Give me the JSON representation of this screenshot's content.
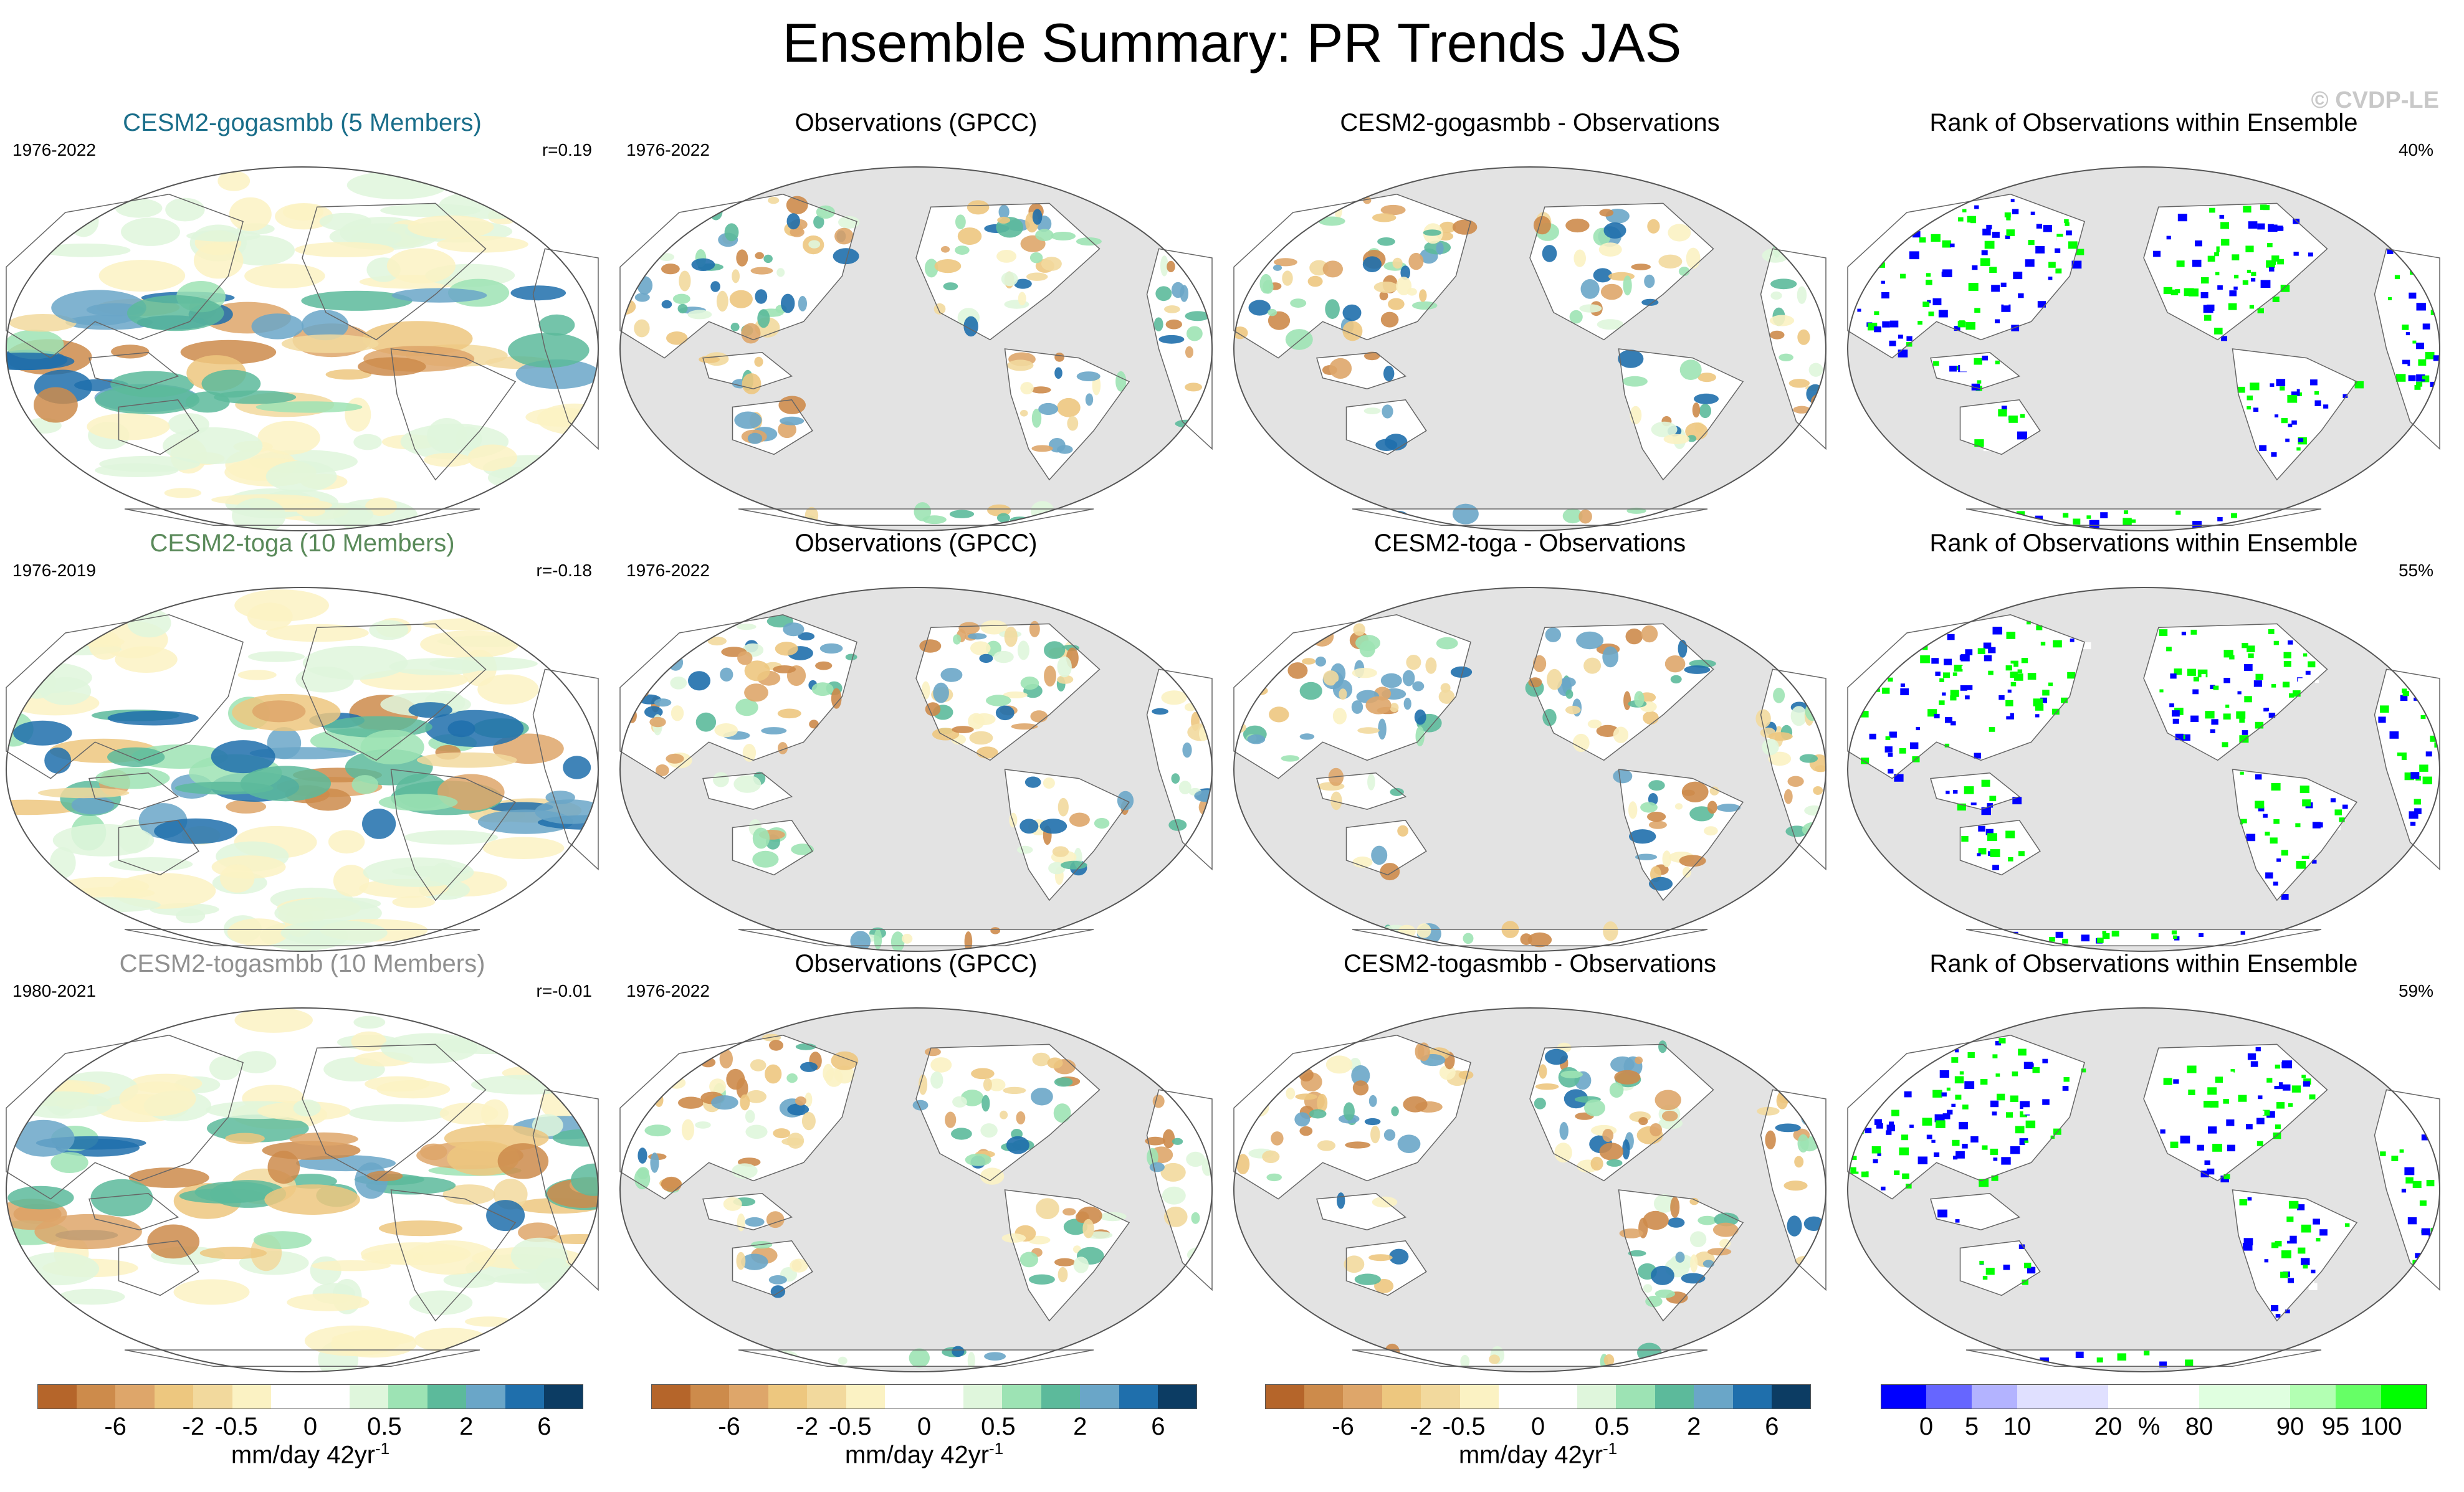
{
  "title": "Ensemble Summary: PR Trends JAS",
  "watermark": "© CVDP-LE",
  "colors": {
    "title_gogasmbb": "#1a6e8a",
    "title_toga": "#5a8a5a",
    "title_togasmbb": "#909090",
    "ocean_mask": "#e3e3e3",
    "coast": "#666666",
    "rank_low": "#0000ff",
    "rank_high": "#00ff00"
  },
  "rows": [
    {
      "panels": [
        {
          "title": "CESM2-gogasmbb (5 Members)",
          "date": "1976-2022",
          "stat": "r=0.19",
          "kind": "model",
          "title_color": "#1a6e8a"
        },
        {
          "title": "Observations (GPCC)",
          "date": "1976-2022",
          "stat": "",
          "kind": "obs",
          "title_color": "#000000"
        },
        {
          "title": "CESM2-gogasmbb - Observations",
          "date": "",
          "stat": "",
          "kind": "diff",
          "title_color": "#000000"
        },
        {
          "title": "Rank of Observations within Ensemble",
          "date": "",
          "stat": "40%",
          "kind": "rank",
          "title_color": "#000000"
        }
      ]
    },
    {
      "panels": [
        {
          "title": "CESM2-toga (10 Members)",
          "date": "1976-2019",
          "stat": "r=-0.18",
          "kind": "model",
          "title_color": "#5a8a5a"
        },
        {
          "title": "Observations (GPCC)",
          "date": "1976-2022",
          "stat": "",
          "kind": "obs",
          "title_color": "#000000"
        },
        {
          "title": "CESM2-toga - Observations",
          "date": "",
          "stat": "",
          "kind": "diff",
          "title_color": "#000000"
        },
        {
          "title": "Rank of Observations within Ensemble",
          "date": "",
          "stat": "55%",
          "kind": "rank",
          "title_color": "#000000"
        }
      ]
    },
    {
      "panels": [
        {
          "title": "CESM2-togasmbb (10 Members)",
          "date": "1980-2021",
          "stat": "r=-0.01",
          "kind": "model",
          "title_color": "#909090"
        },
        {
          "title": "Observations (GPCC)",
          "date": "1976-2022",
          "stat": "",
          "kind": "obs",
          "title_color": "#000000"
        },
        {
          "title": "CESM2-togasmbb - Observations",
          "date": "",
          "stat": "",
          "kind": "diff",
          "title_color": "#000000"
        },
        {
          "title": "Rank of Observations within Ensemble",
          "date": "",
          "stat": "59%",
          "kind": "rank",
          "title_color": "#000000"
        }
      ]
    }
  ],
  "colorbar_trend": {
    "colors": [
      "#b5652a",
      "#cd8b4b",
      "#dea66a",
      "#edc77f",
      "#f2d99d",
      "#fbf2c3",
      "#ffffff",
      "#ffffff",
      "#dff6dc",
      "#9de3b4",
      "#5cba9b",
      "#6aa6c8",
      "#1f6fac",
      "#0c3c63"
    ],
    "ticks": [
      "-6",
      "-2",
      "-0.5",
      "0",
      "0.5",
      "2",
      "6"
    ],
    "unit": "mm/day 42yr",
    "unit_sup": "-1"
  },
  "colorbar_rank": {
    "colors": [
      "#0000ff",
      "#6666ff",
      "#b3b3ff",
      "#e0e0ff",
      "#e0e0ff",
      "#ffffff",
      "#ffffff",
      "#e0ffe0",
      "#e0ffe0",
      "#b3ffb3",
      "#66ff66",
      "#00ff00"
    ],
    "ticks": [
      "0",
      "5",
      "10",
      "20",
      "%",
      "80",
      "90",
      "95",
      "100"
    ]
  }
}
